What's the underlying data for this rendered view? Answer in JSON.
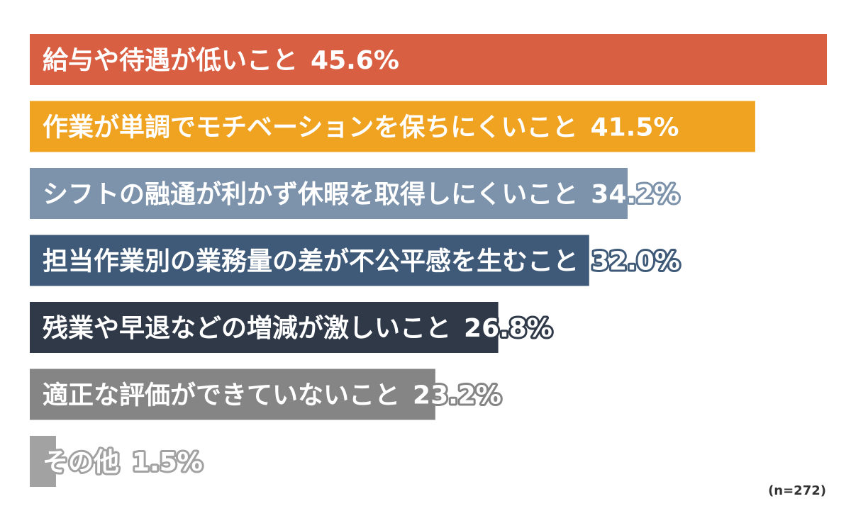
{
  "chart_data": {
    "type": "bar",
    "orientation": "horizontal",
    "unit": "%",
    "xlim": [
      0,
      45.6
    ],
    "grid": false,
    "legend": "none",
    "categories": [
      "給与や待遇が低いこと",
      "作業が単調でモチベーションを保ちにくいこと",
      "シフトの融通が利かず休暇を取得しにくいこと",
      "担当作業別の業務量の差が不公平感を生むこと",
      "残業や早退などの増減が激しいこと",
      "適正な評価ができていないこと",
      "その他"
    ],
    "values": [
      45.6,
      41.5,
      34.2,
      32.0,
      26.8,
      23.2,
      1.5
    ],
    "value_labels": [
      "45.6%",
      "41.5%",
      "34.2%",
      "32.0%",
      "26.8%",
      "23.2%",
      "1.5%"
    ],
    "colors": [
      "#d95f43",
      "#efa320",
      "#7d93ab",
      "#3e5a78",
      "#2f3948",
      "#858585",
      "#a2a2a2"
    ],
    "sample_note": "(n=272)"
  }
}
